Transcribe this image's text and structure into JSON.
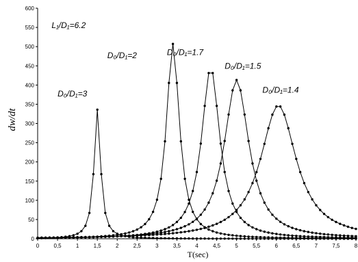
{
  "chart_data": {
    "type": "line",
    "ylabel": "dw/dt",
    "xlabel": "T(sec)",
    "xlim": [
      0,
      8
    ],
    "ylim": [
      0,
      600
    ],
    "x_ticks": [
      "0",
      "0,5",
      "1",
      "1,5",
      "2",
      "2,5",
      "3",
      "3,5",
      "4",
      "4,5",
      "5",
      "5,5",
      "6",
      "6,5",
      "7",
      "7,5",
      "8"
    ],
    "y_ticks": [
      "0",
      "50",
      "100",
      "150",
      "200",
      "250",
      "300",
      "350",
      "400",
      "450",
      "500",
      "550",
      "600"
    ],
    "grid": false,
    "legend": "none",
    "annotations": [
      {
        "id": "lr",
        "text": "L₁/D₁=6.2",
        "x": 0.35,
        "y": 548
      },
      {
        "id": "s3",
        "text": "D₀/D₁=3",
        "x": 0.5,
        "y": 370
      },
      {
        "id": "s2",
        "text": "D₀/D₁=2",
        "x": 1.75,
        "y": 470
      },
      {
        "id": "s17",
        "text": "D₀/D₁=1.7",
        "x": 3.25,
        "y": 478
      },
      {
        "id": "s15",
        "text": "D₀/D₁=1.5",
        "x": 4.7,
        "y": 442
      },
      {
        "id": "s14",
        "text": "D₀/D₁=1.4",
        "x": 5.65,
        "y": 380
      }
    ],
    "series": [
      {
        "peak_x": 1.5,
        "peak_y": 336,
        "hwhm": 0.1
      },
      {
        "peak_x": 3.4,
        "peak_y": 507,
        "hwhm": 0.2
      },
      {
        "peak_x": 4.35,
        "peak_y": 445,
        "hwhm": 0.28
      },
      {
        "peak_x": 5.0,
        "peak_y": 413,
        "hwhm": 0.38
      },
      {
        "peak_x": 6.05,
        "peak_y": 347,
        "hwhm": 0.55
      }
    ]
  }
}
